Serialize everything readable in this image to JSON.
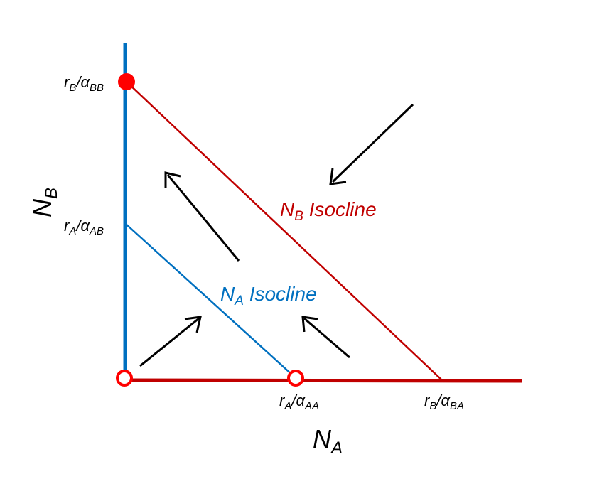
{
  "axes": {
    "x_label": {
      "main": "N",
      "sub": "A"
    },
    "y_label": {
      "main": "N",
      "sub": "B"
    }
  },
  "y_ticks": [
    {
      "main": "r",
      "sub1": "B",
      "mid": "/α",
      "sub2": "BB"
    },
    {
      "main": "r",
      "sub1": "A",
      "mid": "/α",
      "sub2": "AB"
    }
  ],
  "x_ticks": [
    {
      "main": "r",
      "sub1": "A",
      "mid": "/α",
      "sub2": "AA"
    },
    {
      "main": "r",
      "sub1": "B",
      "mid": "/α",
      "sub2": "BA"
    }
  ],
  "isoclines": {
    "nb": {
      "main": "N",
      "sub": "B",
      "rest": " Isocline"
    },
    "na": {
      "main": "N",
      "sub": "A",
      "rest": " Isocline"
    }
  },
  "colors": {
    "blue": "#0070C0",
    "red": "#C00000",
    "dot_red": "#FF0000",
    "arrow": "#000000"
  }
}
